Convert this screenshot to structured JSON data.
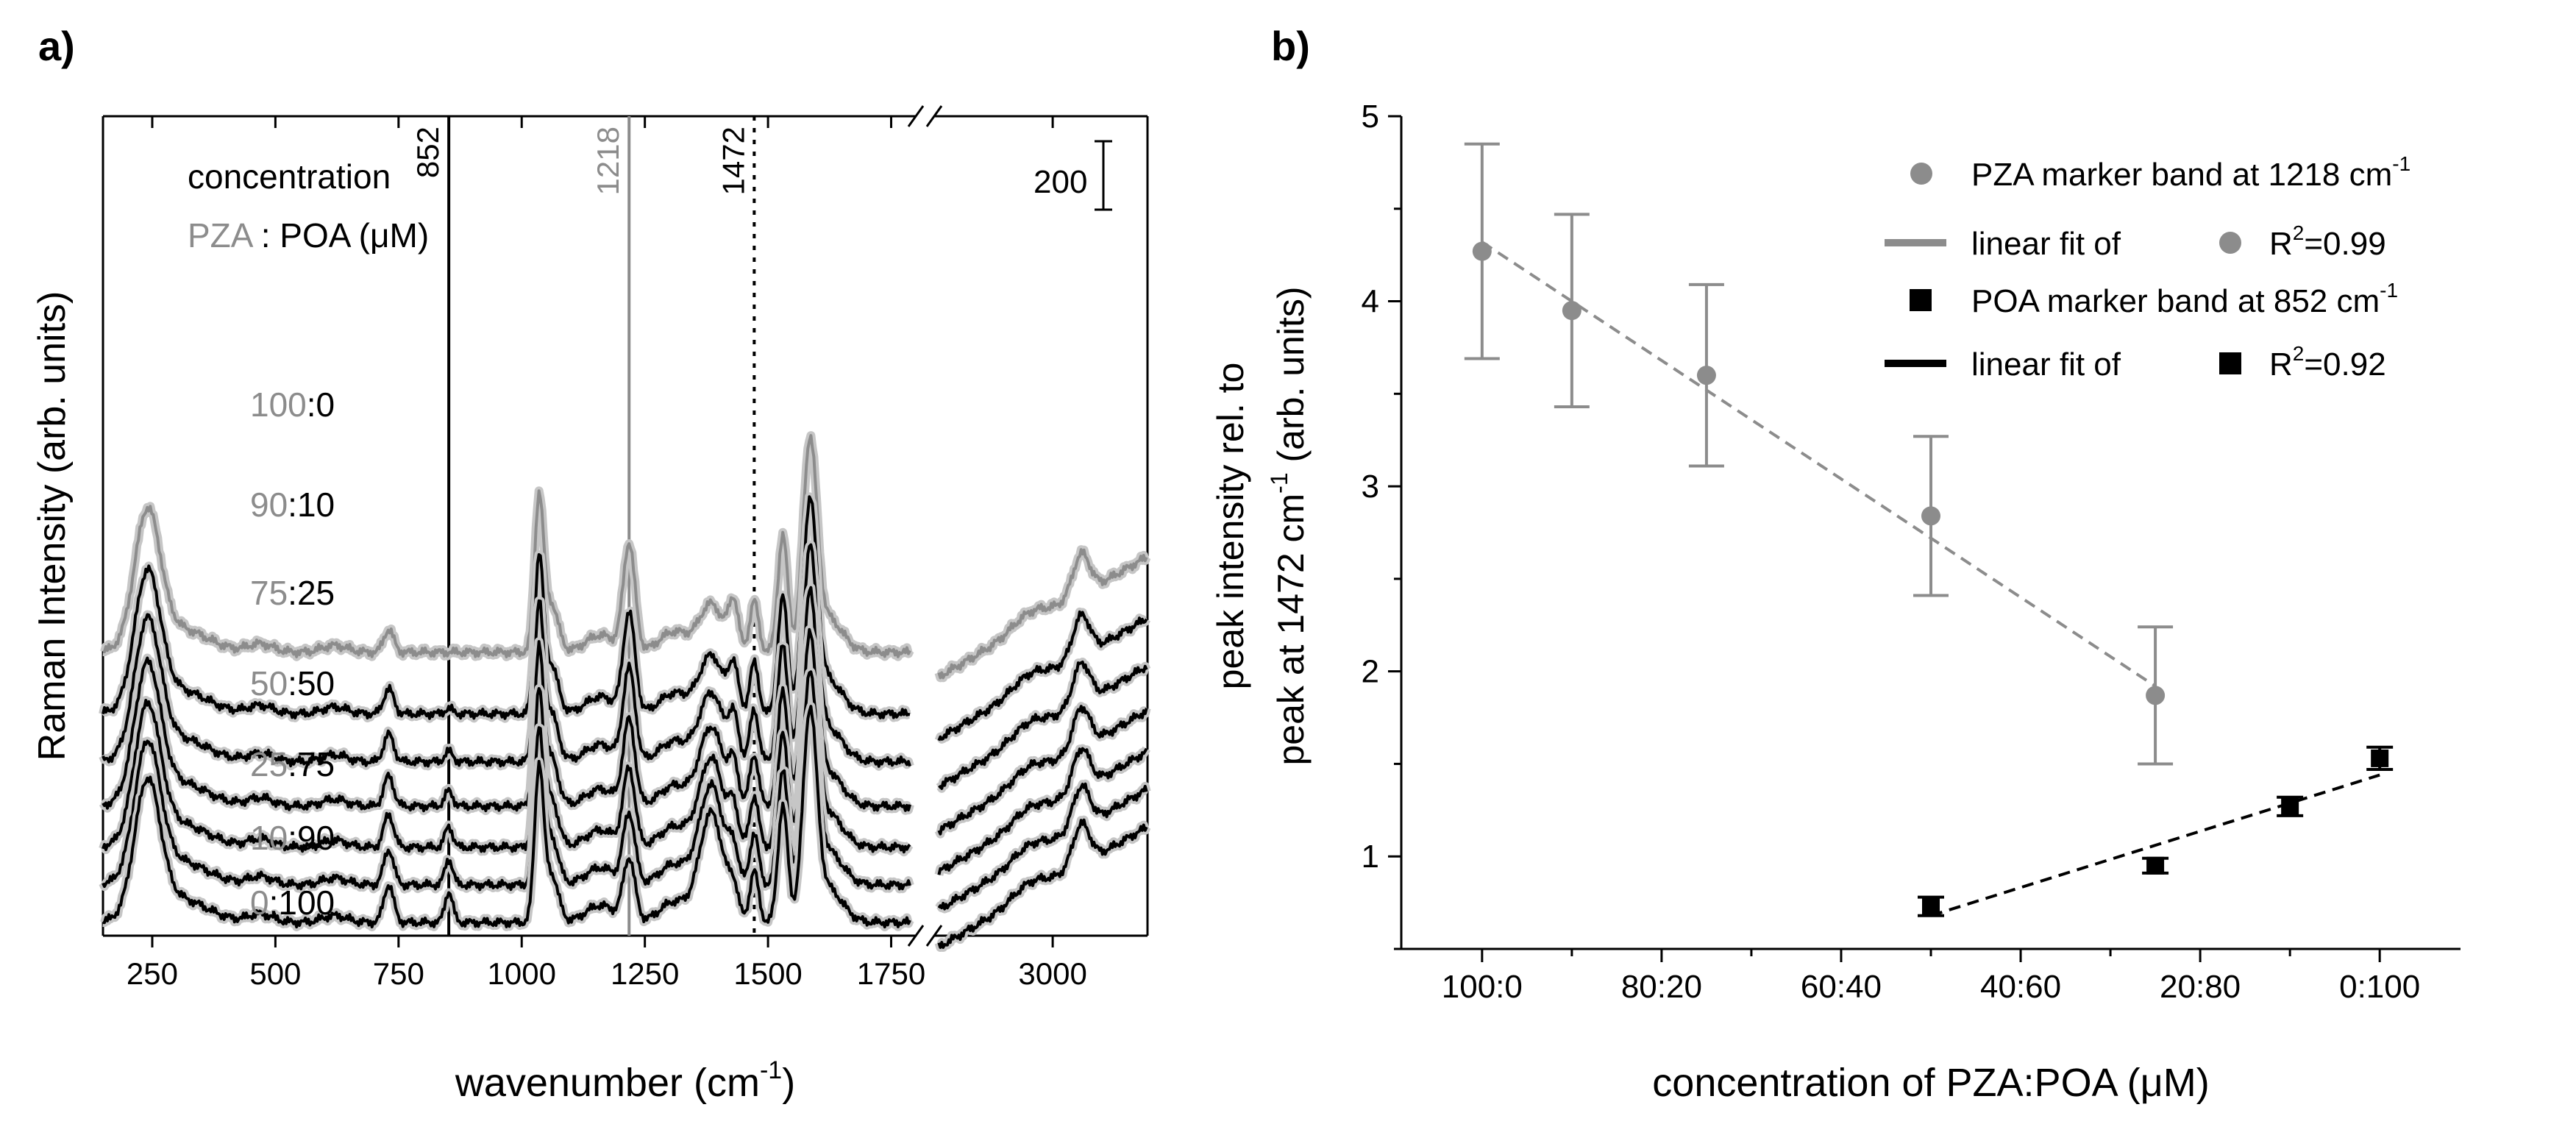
{
  "chart_data": [
    {
      "type": "line",
      "panel_label": "a)",
      "xlabel": "wavenumber (cm",
      "xlabel_sup": "-1",
      "xlabel_end": ")",
      "ylabel": "Raman Intensity (arb. units)",
      "x_segments": [
        {
          "range": [
            150,
            1800
          ]
        },
        {
          "range": [
            2750,
            3200
          ]
        }
      ],
      "x_ticks_left": [
        250,
        500,
        750,
        1000,
        1250,
        1500,
        1750
      ],
      "x_ticks_right": [
        3000
      ],
      "scale_bar": {
        "value": 200,
        "label": "200"
      },
      "legend_title": "concentration",
      "legend_sub": {
        "pza": "PZA",
        "sep": " : POA (",
        "mu": "μ",
        "end": "M)"
      },
      "marker_lines": [
        {
          "x": 852,
          "label": "852",
          "style": "solid",
          "color": "#000000"
        },
        {
          "x": 1218,
          "label": "1218",
          "style": "solid",
          "color": "#8c8c8c"
        },
        {
          "x": 1472,
          "label": "1472",
          "style": "dotted",
          "color": "#000000"
        }
      ],
      "series": [
        {
          "name": "100:0",
          "pza": "100",
          "poa": "0",
          "offset": 4.85,
          "color": "#8c8c8c"
        },
        {
          "name": "90:10",
          "pza": "90",
          "poa": "10",
          "offset": 3.95,
          "color": "#000000"
        },
        {
          "name": "75:25",
          "pza": "75",
          "poa": "25",
          "offset": 3.25,
          "color": "#000000"
        },
        {
          "name": "50:50",
          "pza": "50",
          "poa": "50",
          "offset": 2.6,
          "color": "#000000"
        },
        {
          "name": "25:75",
          "pza": "25",
          "poa": "75",
          "offset": 2.0,
          "color": "#000000"
        },
        {
          "name": "10:90",
          "pza": "10",
          "poa": "90",
          "offset": 1.45,
          "color": "#000000"
        },
        {
          "name": "0:100",
          "pza": "0",
          "poa": "100",
          "offset": 0.9,
          "color": "#000000"
        }
      ]
    },
    {
      "type": "scatter",
      "panel_label": "b)",
      "xlabel": "concentration of PZA:POA (",
      "xlabel_mu": "μ",
      "xlabel_end": "M)",
      "ylabel_line1": "peak intensity rel. to",
      "ylabel_line2": "peak at 1472 cm",
      "ylabel_sup": "-1",
      "ylabel_end": " (arb. units)",
      "categories": [
        "100:0",
        "80:20",
        "60:40",
        "40:60",
        "20:80",
        "0:100"
      ],
      "x_positions": [
        100,
        80,
        60,
        40,
        20,
        0
      ],
      "xlim": [
        109,
        -9
      ],
      "ylim": [
        0.5,
        5
      ],
      "y_ticks": [
        1,
        2,
        3,
        4,
        5
      ],
      "series": [
        {
          "name": "PZA marker band at 1218 cm",
          "name_sup": "-1",
          "marker": "circle",
          "color": "#8c8c8c",
          "x": [
            100,
            90,
            75,
            50,
            25
          ],
          "y": [
            4.27,
            3.95,
            3.6,
            2.84,
            1.87
          ],
          "err": [
            0.58,
            0.52,
            0.49,
            0.43,
            0.37
          ],
          "fit_label": "linear fit of",
          "r2_text": "R",
          "r2_sup": "2",
          "r2_value": "=0.99",
          "fit": {
            "x": [
              100,
              25
            ],
            "y": [
              4.32,
              1.92
            ]
          }
        },
        {
          "name": "POA marker band at 852 cm",
          "name_sup": "-1",
          "marker": "square",
          "color": "#000000",
          "x": [
            50,
            25,
            10,
            0
          ],
          "y": [
            0.73,
            0.95,
            1.27,
            1.53
          ],
          "err": [
            0.05,
            0.04,
            0.05,
            0.06
          ],
          "fit_label": "linear fit of",
          "r2_text": "R",
          "r2_sup": "2",
          "r2_value": "=0.92",
          "fit": {
            "x": [
              50,
              0
            ],
            "y": [
              0.68,
              1.44
            ]
          }
        }
      ]
    }
  ]
}
